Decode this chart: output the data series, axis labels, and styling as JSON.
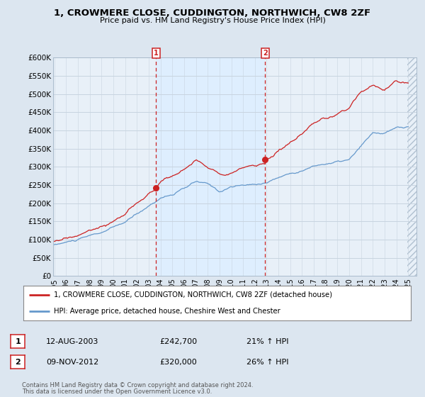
{
  "title": "1, CROWMERE CLOSE, CUDDINGTON, NORTHWICH, CW8 2ZF",
  "subtitle": "Price paid vs. HM Land Registry's House Price Index (HPI)",
  "ylim": [
    0,
    600000
  ],
  "xlim_start": 1994.9,
  "xlim_end": 2025.7,
  "bg_color": "#dce6f0",
  "plot_bg_color": "#e8f0f8",
  "grid_color": "#c8d4e0",
  "hpi_color": "#6699cc",
  "price_color": "#cc2222",
  "sale1_x": 2003.62,
  "sale1_price": 242700,
  "sale1_label": "1",
  "sale2_x": 2012.87,
  "sale2_price": 320000,
  "sale2_label": "2",
  "shade_color": "#ddeeff",
  "hatch_color": "#b0c0d0",
  "legend_line1": "1, CROWMERE CLOSE, CUDDINGTON, NORTHWICH, CW8 2ZF (detached house)",
  "legend_line2": "HPI: Average price, detached house, Cheshire West and Chester",
  "table_row1": [
    "1",
    "12-AUG-2003",
    "£242,700",
    "21% ↑ HPI"
  ],
  "table_row2": [
    "2",
    "09-NOV-2012",
    "£320,000",
    "26% ↑ HPI"
  ],
  "footer1": "Contains HM Land Registry data © Crown copyright and database right 2024.",
  "footer2": "This data is licensed under the Open Government Licence v3.0."
}
